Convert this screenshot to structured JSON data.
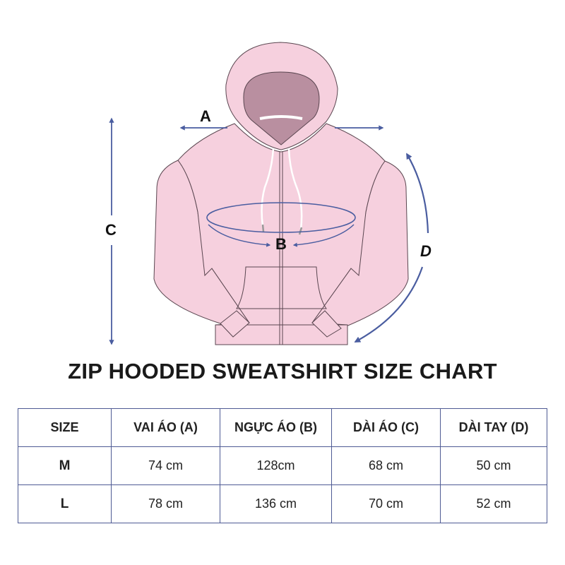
{
  "colors": {
    "garment": "#f6d0de",
    "hood_inside": "#b98fa0",
    "outline": "#5a4650",
    "arrow": "#4a5da0",
    "table_border": "#4e5a94"
  },
  "diagram": {
    "labels": {
      "a": "A",
      "b": "B",
      "c": "C",
      "d": "D"
    }
  },
  "title": "ZIP HOODED SWEATSHIRT SIZE CHART",
  "table": {
    "headers": [
      "SIZE",
      "VAI ÁO (A)",
      "NGỰC ÁO (B)",
      "DÀI ÁO (C)",
      "DÀI TAY (D)"
    ],
    "rows": [
      [
        "M",
        "74 cm",
        "128cm",
        "68 cm",
        "50 cm"
      ],
      [
        "L",
        "78 cm",
        "136 cm",
        "70 cm",
        "52 cm"
      ]
    ]
  }
}
